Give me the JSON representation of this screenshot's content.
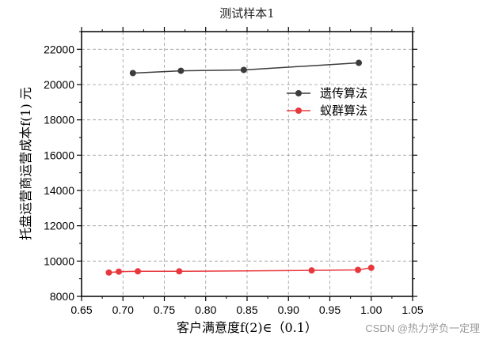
{
  "watermark": "CSDN @热力学负一定理",
  "chart_data": {
    "type": "line",
    "title": "测试样本1",
    "xlabel": "客户满意度f(2)∈（0.1）",
    "ylabel": "托盘运营商运营成本f(1) 元",
    "xlim": [
      0.65,
      1.05
    ],
    "ylim": [
      8000,
      23000
    ],
    "xticks": [
      "0.65",
      "0.70",
      "0.75",
      "0.80",
      "0.85",
      "0.90",
      "0.95",
      "1.00",
      "1.05"
    ],
    "yticks": [
      "8000",
      "10000",
      "12000",
      "14000",
      "16000",
      "18000",
      "20000",
      "22000"
    ],
    "grid": true,
    "legend_position": "upper-right",
    "series": [
      {
        "name": "遗传算法",
        "color": "#3c3c3c",
        "x": [
          0.712,
          0.77,
          0.846,
          0.985
        ],
        "y": [
          20650,
          20780,
          20830,
          21230
        ]
      },
      {
        "name": "蚁群算法",
        "color": "#e8383d",
        "x": [
          0.683,
          0.695,
          0.718,
          0.768,
          0.928,
          0.984,
          1.0
        ],
        "y": [
          9350,
          9400,
          9420,
          9420,
          9470,
          9500,
          9620
        ]
      }
    ]
  }
}
